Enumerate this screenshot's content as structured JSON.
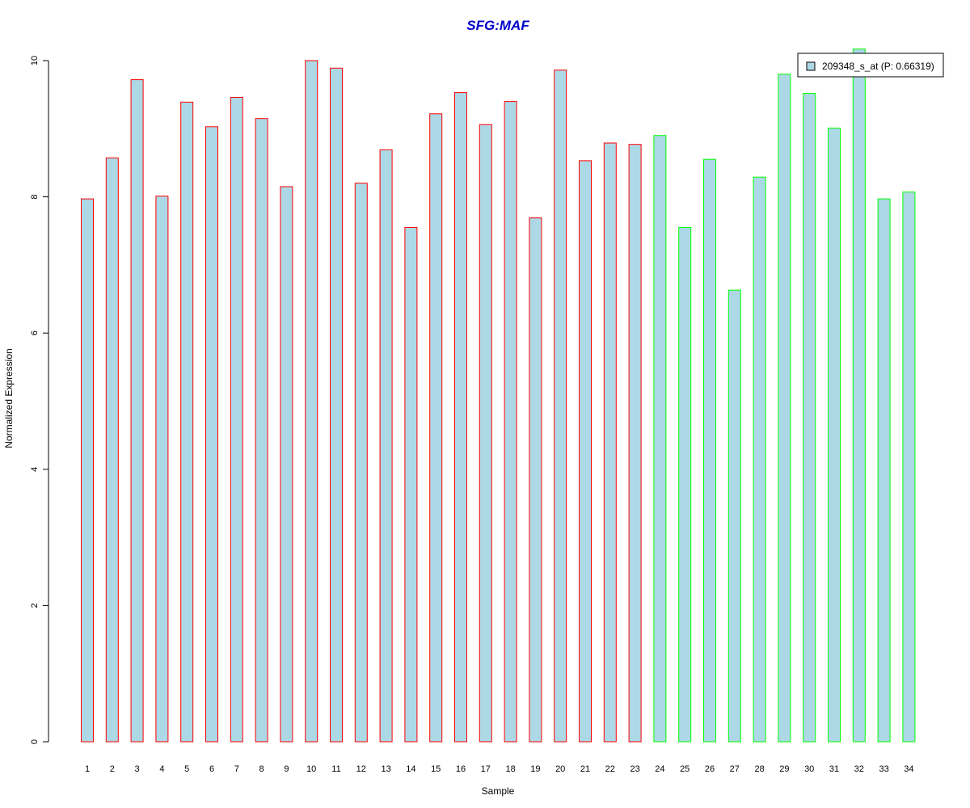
{
  "chart_data": {
    "type": "bar",
    "title": "SFG:MAF",
    "xlabel": "Sample",
    "ylabel": "Normalized Expression",
    "ylim": [
      0,
      10
    ],
    "yticks": [
      0,
      2,
      4,
      6,
      8,
      10
    ],
    "categories": [
      "1",
      "2",
      "3",
      "4",
      "5",
      "6",
      "7",
      "8",
      "9",
      "10",
      "11",
      "12",
      "13",
      "14",
      "15",
      "16",
      "17",
      "18",
      "19",
      "20",
      "21",
      "22",
      "23",
      "24",
      "25",
      "26",
      "27",
      "28",
      "29",
      "30",
      "31",
      "32",
      "33",
      "34"
    ],
    "series": [
      {
        "name": "209348_s_at (P: 0.66319)",
        "values": [
          7.97,
          8.57,
          9.72,
          8.01,
          9.39,
          9.03,
          9.46,
          9.15,
          8.15,
          10.0,
          9.89,
          8.2,
          8.69,
          7.55,
          9.22,
          9.53,
          9.06,
          9.4,
          7.69,
          9.86,
          8.53,
          8.79,
          8.77,
          8.9,
          7.55,
          8.55,
          6.63,
          8.29,
          9.8,
          9.52,
          9.01,
          10.17,
          7.97,
          8.07
        ]
      }
    ],
    "group_border_colors": [
      "#ff0000",
      "#ff0000",
      "#ff0000",
      "#ff0000",
      "#ff0000",
      "#ff0000",
      "#ff0000",
      "#ff0000",
      "#ff0000",
      "#ff0000",
      "#ff0000",
      "#ff0000",
      "#ff0000",
      "#ff0000",
      "#ff0000",
      "#ff0000",
      "#ff0000",
      "#ff0000",
      "#ff0000",
      "#ff0000",
      "#ff0000",
      "#ff0000",
      "#ff0000",
      "#00ff00",
      "#00ff00",
      "#00ff00",
      "#00ff00",
      "#00ff00",
      "#00ff00",
      "#00ff00",
      "#00ff00",
      "#00ff00",
      "#00ff00",
      "#00ff00"
    ],
    "bar_fill": "#add8e6",
    "title_color": "#0000cc",
    "legend_placement": "top-right",
    "grid": false
  }
}
